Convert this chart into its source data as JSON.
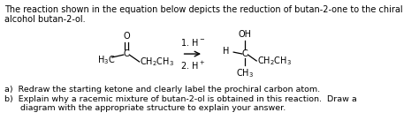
{
  "background_color": "#ffffff",
  "figsize": [
    4.74,
    1.36
  ],
  "dpi": 100,
  "title_text": "The reaction shown in the equation below depicts the reduction of butan-2-one to the chiral\nalcohol butan-2-ol.",
  "title_fontsize": 7.0,
  "body_fontsize": 6.8,
  "reagent1": "1. H⁻",
  "reagent2": "2. H⁺"
}
